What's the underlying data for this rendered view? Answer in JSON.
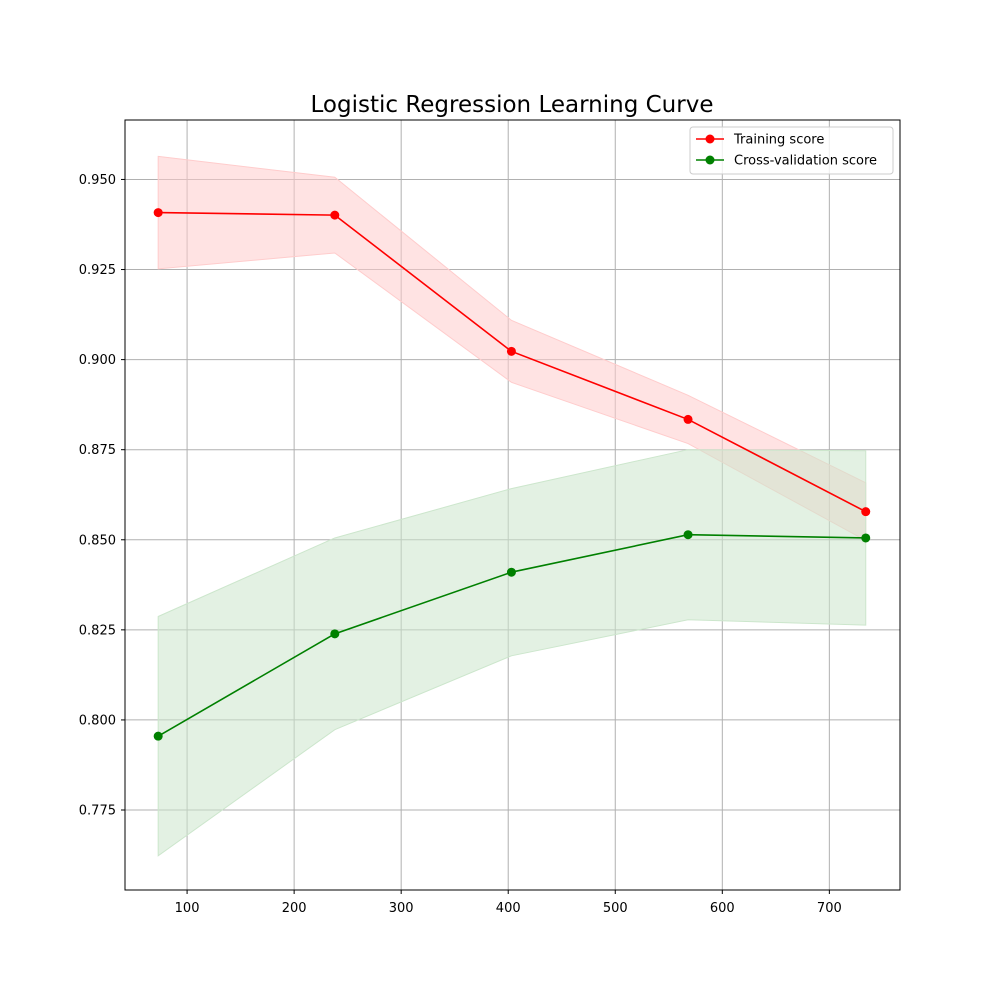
{
  "chart_data": {
    "type": "line",
    "title": "Logistic Regression Learning Curve",
    "xlabel": "",
    "ylabel": "",
    "xlim": [
      42,
      766
    ],
    "ylim": [
      0.7528,
      0.9665
    ],
    "x_ticks": [
      100,
      200,
      300,
      400,
      500,
      600,
      700
    ],
    "y_ticks": [
      0.775,
      0.8,
      0.825,
      0.85,
      0.875,
      0.9,
      0.925,
      0.95
    ],
    "grid": true,
    "legend_position": "top-right",
    "x": [
      73,
      238,
      403,
      568,
      734
    ],
    "series": [
      {
        "name": "Training score",
        "color": "#ff0000",
        "band_color": "#ffcccc",
        "values": [
          0.9408,
          0.9401,
          0.9023,
          0.8834,
          0.8578
        ],
        "band_upper": [
          0.9564,
          0.9506,
          0.9109,
          0.8901,
          0.8658
        ],
        "band_lower": [
          0.9252,
          0.9296,
          0.8937,
          0.8767,
          0.8498
        ]
      },
      {
        "name": "Cross-validation score",
        "color": "#008000",
        "band_color": "#cce6cc",
        "values": [
          0.7955,
          0.8239,
          0.841,
          0.8514,
          0.8505
        ],
        "band_upper": [
          0.8287,
          0.8505,
          0.8642,
          0.875,
          0.8747
        ],
        "band_lower": [
          0.7623,
          0.7973,
          0.8178,
          0.8278,
          0.8263
        ]
      }
    ]
  }
}
